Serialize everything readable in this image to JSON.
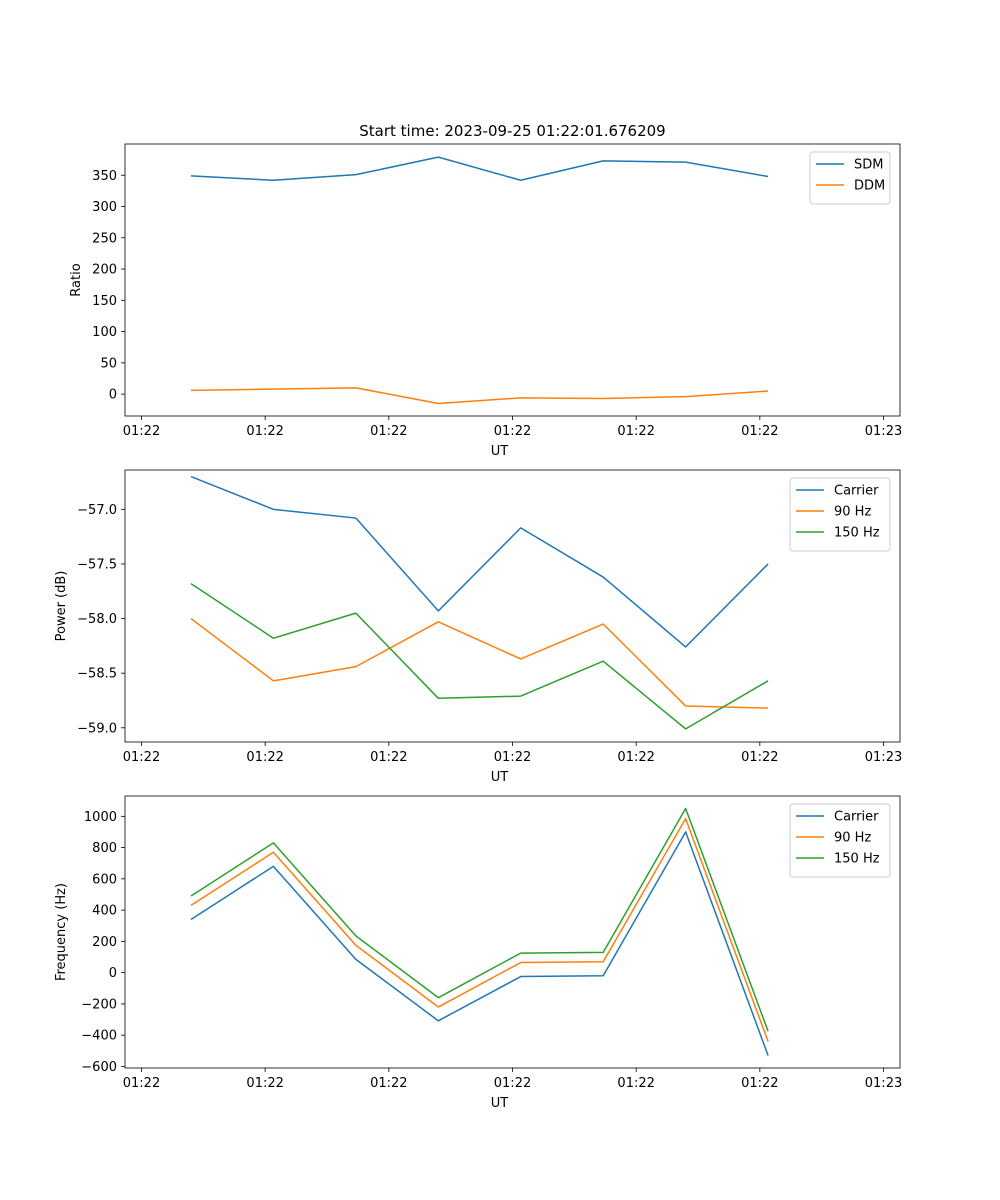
{
  "figure_title": "Start time: 2023-09-25 01:22:01.676209",
  "colors": {
    "blue": "#1f77b4",
    "orange": "#ff7f0e",
    "green": "#2ca02c"
  },
  "chart_data": [
    {
      "type": "line",
      "xlabel": "UT",
      "ylabel": "Ratio",
      "x": [
        1,
        2,
        3,
        4,
        5,
        6,
        7,
        8
      ],
      "xlim": [
        0.2,
        9.6
      ],
      "xticks": [
        0.4,
        1.9,
        3.4,
        4.9,
        6.4,
        7.9,
        9.4
      ],
      "xtick_labels": [
        "01:22",
        "01:22",
        "01:22",
        "01:22",
        "01:22",
        "01:22",
        "01:23"
      ],
      "ylim": [
        -35,
        400
      ],
      "yticks": [
        0,
        50,
        100,
        150,
        200,
        250,
        300,
        350
      ],
      "ytick_labels": [
        "0",
        "50",
        "100",
        "150",
        "200",
        "250",
        "300",
        "350"
      ],
      "legend": "upper right",
      "series": [
        {
          "name": "SDM",
          "color": "#1f77b4",
          "values": [
            349,
            342,
            351,
            379,
            342,
            373,
            371,
            348
          ]
        },
        {
          "name": "DDM",
          "color": "#ff7f0e",
          "values": [
            6,
            8,
            10,
            -15,
            -6,
            -7,
            -4,
            5
          ]
        }
      ]
    },
    {
      "type": "line",
      "xlabel": "UT",
      "ylabel": "Power (dB)",
      "x": [
        1,
        2,
        3,
        4,
        5,
        6,
        7,
        8
      ],
      "xlim": [
        0.2,
        9.6
      ],
      "xticks": [
        0.4,
        1.9,
        3.4,
        4.9,
        6.4,
        7.9,
        9.4
      ],
      "xtick_labels": [
        "01:22",
        "01:22",
        "01:22",
        "01:22",
        "01:22",
        "01:22",
        "01:23"
      ],
      "ylim": [
        -59.13,
        -56.64
      ],
      "yticks": [
        -59.0,
        -58.5,
        -58.0,
        -57.5,
        -57.0
      ],
      "ytick_labels": [
        "−59.0",
        "−58.5",
        "−58.0",
        "−57.5",
        "−57.0"
      ],
      "legend": "upper right",
      "series": [
        {
          "name": "Carrier",
          "color": "#1f77b4",
          "values": [
            -56.7,
            -57.0,
            -57.08,
            -57.93,
            -57.17,
            -57.62,
            -58.26,
            -57.5
          ]
        },
        {
          "name": "90 Hz",
          "color": "#ff7f0e",
          "values": [
            -58.0,
            -58.57,
            -58.44,
            -58.03,
            -58.37,
            -58.05,
            -58.8,
            -58.82
          ]
        },
        {
          "name": "150 Hz",
          "color": "#2ca02c",
          "values": [
            -57.68,
            -58.18,
            -57.95,
            -58.73,
            -58.71,
            -58.39,
            -59.01,
            -58.57
          ]
        }
      ]
    },
    {
      "type": "line",
      "xlabel": "UT",
      "ylabel": "Frequency (Hz)",
      "x": [
        1,
        2,
        3,
        4,
        5,
        6,
        7,
        8
      ],
      "xlim": [
        0.2,
        9.6
      ],
      "xticks": [
        0.4,
        1.9,
        3.4,
        4.9,
        6.4,
        7.9,
        9.4
      ],
      "xtick_labels": [
        "01:22",
        "01:22",
        "01:22",
        "01:22",
        "01:22",
        "01:22",
        "01:23"
      ],
      "ylim": [
        -610,
        1130
      ],
      "yticks": [
        -600,
        -400,
        -200,
        0,
        200,
        400,
        600,
        800,
        1000
      ],
      "ytick_labels": [
        "−600",
        "−400",
        "−200",
        "0",
        "200",
        "400",
        "600",
        "800",
        "1000"
      ],
      "legend": "upper right",
      "series": [
        {
          "name": "Carrier",
          "color": "#1f77b4",
          "values": [
            340,
            680,
            85,
            -308,
            -25,
            -20,
            900,
            -530
          ]
        },
        {
          "name": "90 Hz",
          "color": "#ff7f0e",
          "values": [
            430,
            770,
            175,
            -220,
            65,
            70,
            985,
            -440
          ]
        },
        {
          "name": "150 Hz",
          "color": "#2ca02c",
          "values": [
            490,
            830,
            235,
            -160,
            125,
            130,
            1050,
            -375
          ]
        }
      ]
    }
  ]
}
